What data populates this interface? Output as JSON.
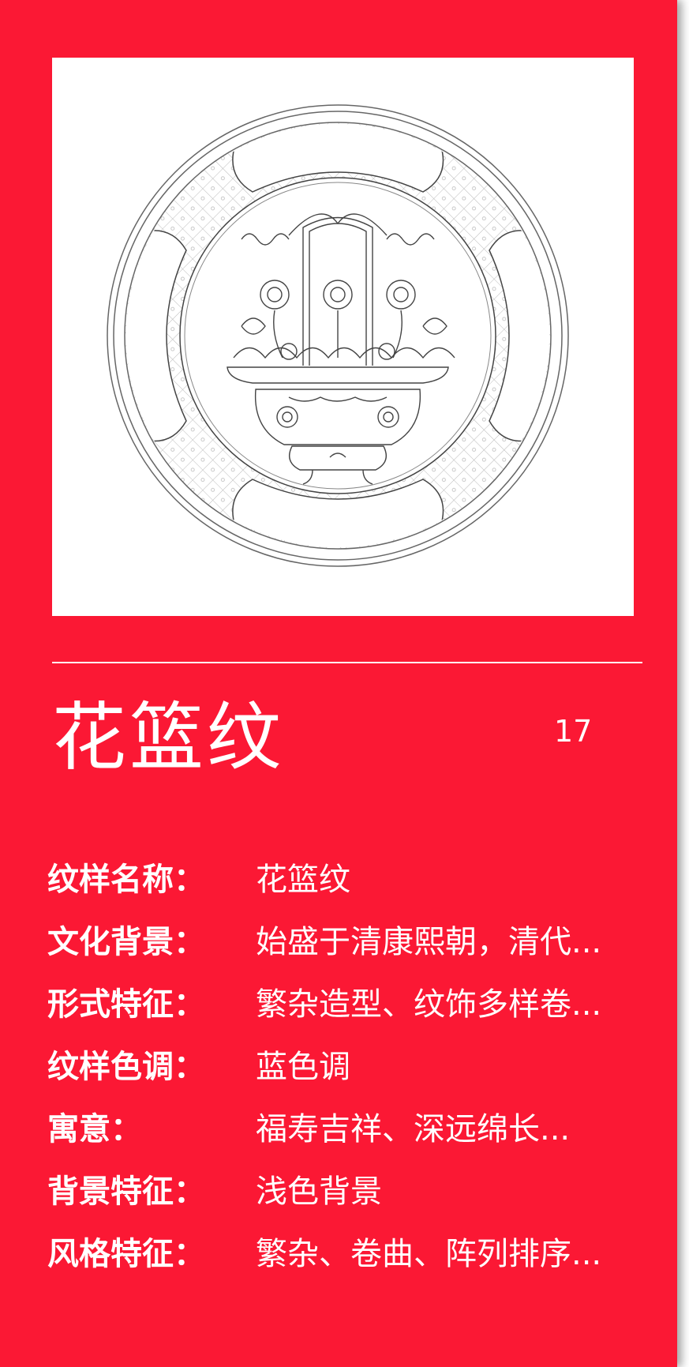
{
  "title": "花篮纹",
  "page_number": "17",
  "image": {
    "icon": "flower-basket-pattern-illustration"
  },
  "colors": {
    "background": "#fb1834",
    "text": "#ffffff",
    "image_background": "#ffffff"
  },
  "info": [
    {
      "label": "纹样名称：",
      "value": "花篮纹"
    },
    {
      "label": "文化背景：",
      "value": "始盛于清康熙朝，清代..."
    },
    {
      "label": "形式特征：",
      "value": "繁杂造型、纹饰多样卷..."
    },
    {
      "label": "纹样色调：",
      "value": "蓝色调"
    },
    {
      "label": "寓意：",
      "value": "福寿吉祥、深远绵长..."
    },
    {
      "label": "背景特征：",
      "value": "浅色背景"
    },
    {
      "label": "风格特征：",
      "value": "繁杂、卷曲、阵列排序..."
    }
  ]
}
